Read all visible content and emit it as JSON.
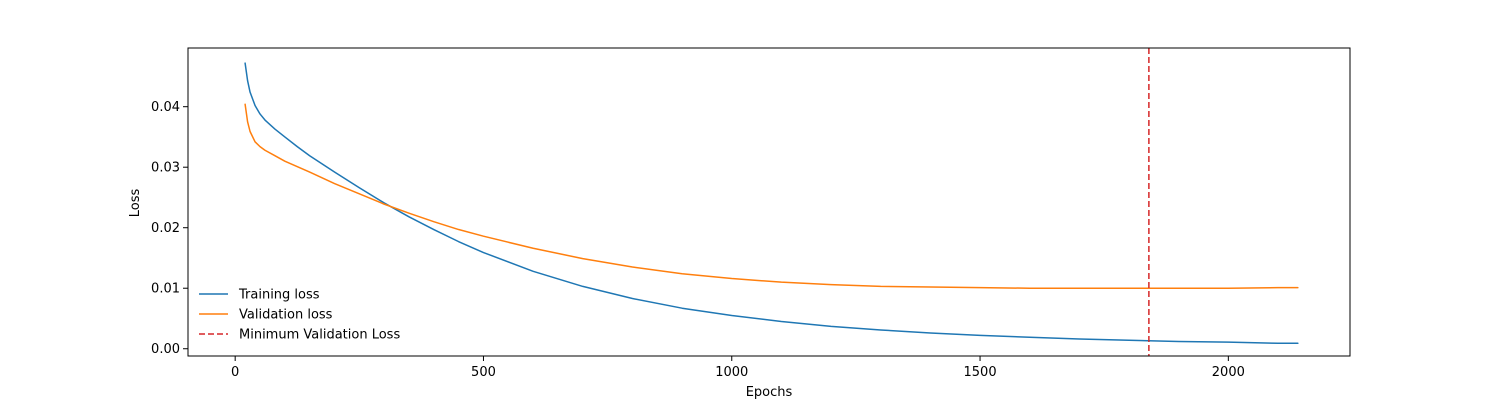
{
  "chart_data": {
    "type": "line",
    "title": "",
    "xlabel": "Epochs",
    "ylabel": "Loss",
    "xlim": [
      -95,
      2245
    ],
    "ylim": [
      -0.0012,
      0.0497
    ],
    "xticks": [
      0,
      500,
      1000,
      1500,
      2000
    ],
    "xtick_labels": [
      "0",
      "500",
      "1000",
      "1500",
      "2000"
    ],
    "yticks": [
      0.0,
      0.01,
      0.02,
      0.03,
      0.04
    ],
    "ytick_labels": [
      "0.00",
      "0.01",
      "0.02",
      "0.03",
      "0.04"
    ],
    "grid": false,
    "legend_position": "lower-left",
    "series": [
      {
        "name": "Training loss",
        "color": "#1f77b4",
        "style": "solid",
        "x": [
          20,
          25,
          30,
          40,
          50,
          60,
          80,
          100,
          125,
          150,
          200,
          250,
          300,
          350,
          400,
          450,
          500,
          600,
          700,
          800,
          900,
          1000,
          1100,
          1200,
          1300,
          1400,
          1500,
          1600,
          1700,
          1800,
          1900,
          2000,
          2100,
          2140
        ],
        "y": [
          0.0472,
          0.0443,
          0.0424,
          0.0402,
          0.0388,
          0.0378,
          0.0363,
          0.035,
          0.0334,
          0.0319,
          0.0292,
          0.0266,
          0.0241,
          0.0218,
          0.0197,
          0.0177,
          0.0159,
          0.0128,
          0.0103,
          0.0083,
          0.0067,
          0.0055,
          0.0045,
          0.0037,
          0.0031,
          0.0026,
          0.0022,
          0.0019,
          0.0016,
          0.0014,
          0.0012,
          0.0011,
          0.0009,
          0.0009
        ]
      },
      {
        "name": "Validation loss",
        "color": "#ff7f0e",
        "style": "solid",
        "x": [
          20,
          25,
          30,
          40,
          50,
          60,
          80,
          100,
          150,
          200,
          250,
          300,
          350,
          400,
          450,
          500,
          600,
          700,
          800,
          900,
          1000,
          1100,
          1200,
          1300,
          1400,
          1500,
          1600,
          1700,
          1800,
          1900,
          2000,
          2100,
          2140
        ],
        "y": [
          0.0404,
          0.0375,
          0.0359,
          0.0342,
          0.0334,
          0.0328,
          0.0319,
          0.031,
          0.0292,
          0.0273,
          0.0256,
          0.0239,
          0.0224,
          0.021,
          0.0197,
          0.0186,
          0.0166,
          0.0149,
          0.0135,
          0.0124,
          0.0116,
          0.011,
          0.0106,
          0.0103,
          0.0102,
          0.0101,
          0.01,
          0.01,
          0.01,
          0.01,
          0.01,
          0.0101,
          0.0101
        ]
      }
    ],
    "vlines": [
      {
        "name": "Minimum Validation Loss",
        "x": 1840,
        "color": "#d62728",
        "style": "dashed"
      }
    ]
  }
}
